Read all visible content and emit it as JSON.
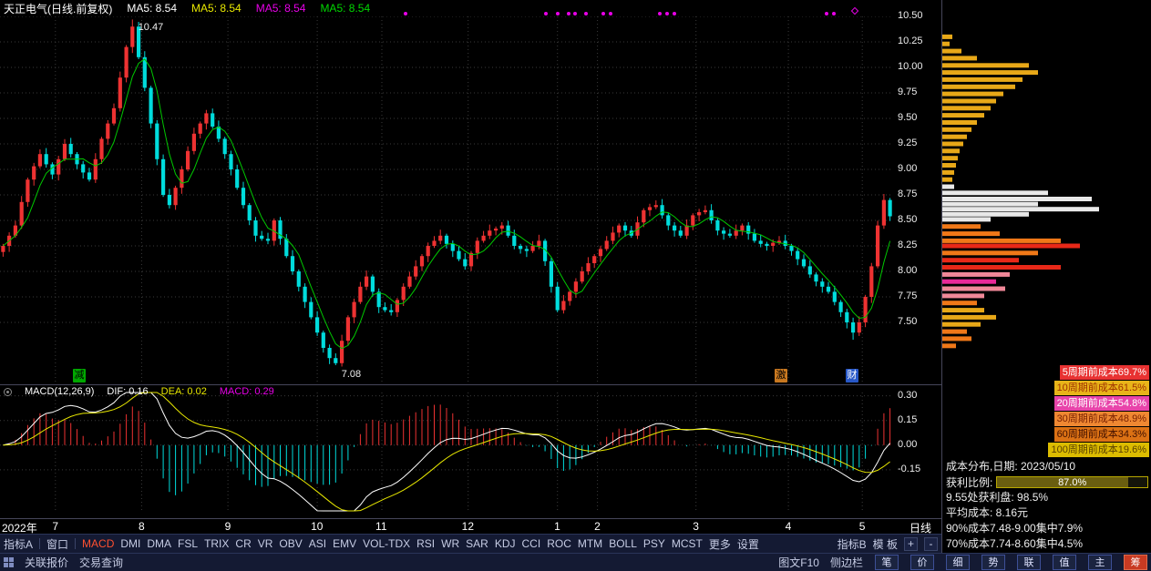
{
  "title_bar": {
    "title": "天正电气(日线.前复权)",
    "ma_labels": [
      {
        "label": "MA5: 8.54",
        "color": "#ffffff"
      },
      {
        "label": "MA5: 8.54",
        "color": "#e8e800"
      },
      {
        "label": "MA5: 8.54",
        "color": "#e800e8"
      },
      {
        "label": "MA5: 8.54",
        "color": "#00d800"
      }
    ],
    "marker_dots_x": [
      443,
      597,
      610,
      622,
      629,
      641,
      660,
      668,
      722,
      730,
      738,
      905,
      913
    ],
    "marker_diamond_x": 935
  },
  "main_chart": {
    "peak_label": "10.47",
    "trough_label": "7.08",
    "badges": [
      {
        "label": "减",
        "bg": "#00a800",
        "color": "#000000",
        "x": 80
      },
      {
        "label": "激",
        "bg": "#c87820",
        "color": "#000000",
        "x": 850
      },
      {
        "label": "财",
        "bg": "#2858c8",
        "color": "#ffffff",
        "x": 928
      }
    ]
  },
  "price_axis": {
    "labels": [
      "10.50",
      "10.25",
      "10.00",
      "9.75",
      "9.50",
      "9.25",
      "9.00",
      "8.75",
      "8.50",
      "8.25",
      "8.00",
      "7.75",
      "7.50"
    ]
  },
  "macd": {
    "header": {
      "name": "MACD(12,26,9)",
      "dif_label": "DIF: 0.16",
      "dea_label": "DEA: 0.02",
      "macd_label": "MACD: 0.29"
    },
    "axis": [
      {
        "label": "0.30",
        "value": 0.3
      },
      {
        "label": "0.15",
        "value": 0.15
      },
      {
        "label": "0.00",
        "value": 0.0
      },
      {
        "label": "-0.15",
        "value": -0.15
      }
    ]
  },
  "x_axis": {
    "ticks": [
      {
        "label": "2022年",
        "index": 0
      },
      {
        "label": "7",
        "index": 9
      },
      {
        "label": "8",
        "index": 23
      },
      {
        "label": "9",
        "index": 37
      },
      {
        "label": "10",
        "index": 51.5
      },
      {
        "label": "11",
        "index": 62
      },
      {
        "label": "12",
        "index": 76
      },
      {
        "label": "1",
        "index": 90.5
      },
      {
        "label": "2",
        "index": 97
      },
      {
        "label": "3",
        "index": 113
      },
      {
        "label": "4",
        "index": 128
      },
      {
        "label": "5",
        "index": 140
      }
    ],
    "period_label": "日线"
  },
  "toolbar": {
    "group_left": [
      "指标A",
      "窗口"
    ],
    "indicators": [
      "MACD",
      "DMI",
      "DMA",
      "FSL",
      "TRIX",
      "CR",
      "VR",
      "OBV",
      "ASI",
      "EMV",
      "VOL-TDX",
      "RSI",
      "WR",
      "SAR",
      "KDJ",
      "CCI",
      "ROC",
      "MTM",
      "BOLL",
      "PSY",
      "MCST",
      "更多",
      "设置"
    ],
    "active_indicator": "MACD",
    "group_right": [
      "指标B",
      "模 板"
    ],
    "zoom_in": "+",
    "zoom_out": "-"
  },
  "status_bar": {
    "left_items": [
      "关联报价",
      "交易查询"
    ],
    "right_items": [
      "图文F10",
      "侧边栏"
    ],
    "tabs": [
      "笔",
      "价",
      "细",
      "势",
      "联",
      "值",
      "主",
      "筹"
    ],
    "active_tab": "筹"
  },
  "right_panel": {
    "legends": [
      {
        "label": "5周期前成本69.7%",
        "bg": "#e83232",
        "color": "#ffffff"
      },
      {
        "label": "10周期前成本61.5%",
        "bg": "#e8b419",
        "color": "#a03000"
      },
      {
        "label": "20周期前成本54.8%",
        "bg": "#e844aa",
        "color": "#ffffff"
      },
      {
        "label": "30周期前成本48.9%",
        "bg": "#ef8832",
        "color": "#7a2000"
      },
      {
        "label": "60周期前成本34.3%",
        "bg": "#db7114",
        "color": "#401000"
      },
      {
        "label": "100周期前成本19.6%",
        "bg": "#dcbc00",
        "color": "#5a4000"
      }
    ],
    "info": {
      "date_line": "成本分布,日期: 2023/05/10",
      "profit_label": "获利比例:",
      "profit_value": "87.0%",
      "profit_percent": 87.0,
      "line_955": "9.55处获利盘: 98.5%",
      "avg_cost": "平均成本: 8.16元",
      "cost90": "90%成本7.48-9.00集中7.9%",
      "cost70": "70%成本7.74-8.60集中4.5%"
    }
  },
  "chart_data": [
    {
      "type": "candlestick",
      "name": "天正电气 日线 前复权 2022-07 至 2023-05",
      "ylim": [
        6.9,
        10.5
      ],
      "y_ticks": [
        10.5,
        10.25,
        10.0,
        9.75,
        9.5,
        9.25,
        9.0,
        8.75,
        8.5,
        8.25,
        8.0,
        7.75,
        7.5
      ],
      "closes": [
        8.25,
        8.35,
        8.45,
        8.68,
        8.9,
        9.03,
        9.15,
        9.05,
        8.95,
        9.1,
        9.25,
        9.15,
        9.05,
        8.97,
        8.9,
        9.1,
        9.3,
        9.45,
        9.6,
        9.9,
        10.2,
        10.4,
        10.1,
        9.8,
        9.45,
        9.1,
        8.75,
        8.65,
        8.82,
        9.0,
        9.18,
        9.35,
        9.45,
        9.55,
        9.42,
        9.3,
        9.15,
        9.0,
        8.82,
        8.65,
        8.5,
        8.35,
        8.32,
        8.3,
        8.5,
        8.32,
        8.15,
        8.0,
        7.85,
        7.7,
        7.55,
        7.4,
        7.25,
        7.15,
        7.1,
        7.32,
        7.55,
        7.7,
        7.85,
        7.95,
        7.8,
        7.65,
        7.62,
        7.6,
        7.72,
        7.85,
        7.95,
        8.05,
        8.15,
        8.25,
        8.3,
        8.35,
        8.27,
        8.2,
        8.12,
        8.05,
        8.18,
        8.3,
        8.35,
        8.4,
        8.42,
        8.45,
        8.35,
        8.25,
        8.22,
        8.2,
        8.25,
        8.3,
        8.1,
        7.85,
        7.62,
        7.71,
        7.8,
        7.9,
        8.0,
        8.08,
        8.15,
        8.22,
        8.3,
        8.38,
        8.45,
        8.4,
        8.35,
        8.48,
        8.6,
        8.63,
        8.65,
        8.55,
        8.45,
        8.4,
        8.35,
        8.45,
        8.55,
        8.58,
        8.6,
        8.5,
        8.4,
        8.37,
        8.35,
        8.4,
        8.45,
        8.37,
        8.3,
        8.27,
        8.25,
        8.28,
        8.3,
        8.25,
        8.2,
        8.12,
        8.05,
        7.97,
        7.9,
        7.85,
        7.8,
        7.7,
        7.6,
        7.5,
        7.4,
        7.5,
        7.75,
        8.05,
        8.45,
        8.7,
        8.54
      ],
      "peak": {
        "index": 21,
        "high": 10.47
      },
      "trough": {
        "index": 54,
        "low": 7.08
      },
      "second_low": {
        "index": 138,
        "low": 7.33
      },
      "ma5_value": 8.54,
      "ma5_color": "#00c800",
      "up_color": "#ee3232",
      "down_color": "#00dcdc"
    },
    {
      "type": "line+bar",
      "name": "MACD(12,26,9)",
      "dif": 0.16,
      "dea": 0.02,
      "macd": 0.29,
      "y_ticks": [
        0.3,
        0.15,
        0.0,
        -0.15
      ],
      "derived_from": "EMA12/EMA26 of closes series above, hist = 2*(DIF-DEA)"
    },
    {
      "type": "bar",
      "name": "筹码分布 volume-by-price",
      "date": "2023/05/10",
      "rows": [
        {
          "price": 10.3,
          "w": 0.05,
          "color": "#e8a818"
        },
        {
          "price": 10.23,
          "w": 0.04,
          "color": "#e8a818"
        },
        {
          "price": 10.16,
          "w": 0.1,
          "color": "#e8a818"
        },
        {
          "price": 10.09,
          "w": 0.18,
          "color": "#e8a818"
        },
        {
          "price": 10.02,
          "w": 0.45,
          "color": "#e8a818"
        },
        {
          "price": 9.95,
          "w": 0.5,
          "color": "#e8a818"
        },
        {
          "price": 9.88,
          "w": 0.42,
          "color": "#e8a818"
        },
        {
          "price": 9.81,
          "w": 0.38,
          "color": "#e8a818"
        },
        {
          "price": 9.74,
          "w": 0.32,
          "color": "#e8a818"
        },
        {
          "price": 9.67,
          "w": 0.28,
          "color": "#e8a818"
        },
        {
          "price": 9.6,
          "w": 0.25,
          "color": "#e8a818"
        },
        {
          "price": 9.53,
          "w": 0.22,
          "color": "#e8a818"
        },
        {
          "price": 9.46,
          "w": 0.18,
          "color": "#e8a818"
        },
        {
          "price": 9.39,
          "w": 0.15,
          "color": "#e8a818"
        },
        {
          "price": 9.32,
          "w": 0.13,
          "color": "#e8a818"
        },
        {
          "price": 9.25,
          "w": 0.11,
          "color": "#e8a818"
        },
        {
          "price": 9.18,
          "w": 0.09,
          "color": "#e8a818"
        },
        {
          "price": 9.11,
          "w": 0.08,
          "color": "#e8a818"
        },
        {
          "price": 9.04,
          "w": 0.07,
          "color": "#e8a818"
        },
        {
          "price": 8.97,
          "w": 0.06,
          "color": "#e8a818"
        },
        {
          "price": 8.9,
          "w": 0.05,
          "color": "#e8a818"
        },
        {
          "price": 8.83,
          "w": 0.06,
          "color": "#e8e8e8"
        },
        {
          "price": 8.77,
          "w": 0.55,
          "color": "#e8e8e8"
        },
        {
          "price": 8.71,
          "w": 0.78,
          "color": "#e8e8e8"
        },
        {
          "price": 8.66,
          "w": 0.5,
          "color": "#e8e8e8"
        },
        {
          "price": 8.61,
          "w": 0.82,
          "color": "#e8e8e8"
        },
        {
          "price": 8.56,
          "w": 0.45,
          "color": "#e8e8e8"
        },
        {
          "price": 8.51,
          "w": 0.25,
          "color": "#e8e8e8"
        },
        {
          "price": 8.44,
          "w": 0.2,
          "color": "#f07818"
        },
        {
          "price": 8.37,
          "w": 0.3,
          "color": "#f07818"
        },
        {
          "price": 8.3,
          "w": 0.62,
          "color": "#f07818"
        },
        {
          "price": 8.25,
          "w": 0.72,
          "color": "#e82818"
        },
        {
          "price": 8.18,
          "w": 0.5,
          "color": "#f07818"
        },
        {
          "price": 8.11,
          "w": 0.4,
          "color": "#e82818"
        },
        {
          "price": 8.04,
          "w": 0.62,
          "color": "#e82818"
        },
        {
          "price": 7.97,
          "w": 0.35,
          "color": "#f08898"
        },
        {
          "price": 7.9,
          "w": 0.28,
          "color": "#e82898"
        },
        {
          "price": 7.83,
          "w": 0.33,
          "color": "#f08898"
        },
        {
          "price": 7.76,
          "w": 0.22,
          "color": "#f08898"
        },
        {
          "price": 7.69,
          "w": 0.18,
          "color": "#f07818"
        },
        {
          "price": 7.62,
          "w": 0.22,
          "color": "#e8a818"
        },
        {
          "price": 7.55,
          "w": 0.28,
          "color": "#e8a818"
        },
        {
          "price": 7.48,
          "w": 0.2,
          "color": "#e8a818"
        },
        {
          "price": 7.41,
          "w": 0.13,
          "color": "#f07818"
        },
        {
          "price": 7.34,
          "w": 0.15,
          "color": "#f07818"
        },
        {
          "price": 7.27,
          "w": 0.07,
          "color": "#f07818"
        }
      ]
    }
  ]
}
